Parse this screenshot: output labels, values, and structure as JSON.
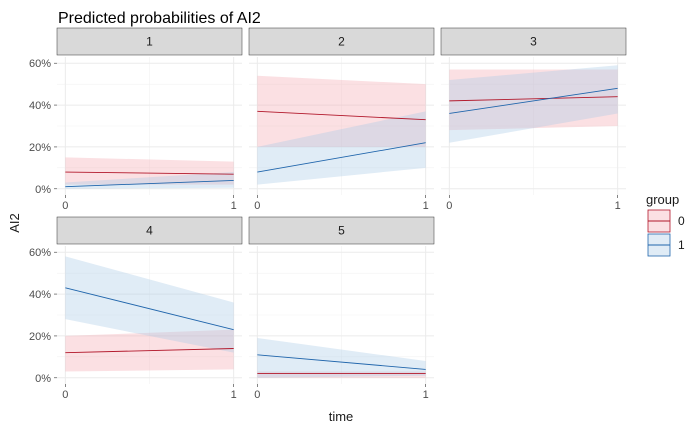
{
  "chart_data": {
    "type": "line",
    "title": "Predicted probabilities of AI2",
    "xlabel": "time",
    "ylabel": "AI2",
    "xlim": [
      0,
      1
    ],
    "ylim": [
      0,
      0.6
    ],
    "x_ticks": [
      "0",
      "1"
    ],
    "y_ticks": [
      "0%",
      "20%",
      "40%",
      "60%"
    ],
    "legend": {
      "title": "group",
      "position": "right",
      "entries": [
        {
          "label": "0",
          "line_color": "#b2182b",
          "fill_color": "#f4a7ae"
        },
        {
          "label": "1",
          "line_color": "#2166ac",
          "fill_color": "#a6c8e6"
        }
      ]
    },
    "facets": [
      {
        "label": "1",
        "series": [
          {
            "group": "0",
            "x": [
              0,
              1
            ],
            "y": [
              0.08,
              0.07
            ],
            "lower": [
              0.02,
              0.02
            ],
            "upper": [
              0.15,
              0.13
            ]
          },
          {
            "group": "1",
            "x": [
              0,
              1
            ],
            "y": [
              0.01,
              0.04
            ],
            "lower": [
              0.0,
              0.005
            ],
            "upper": [
              0.03,
              0.08
            ]
          }
        ]
      },
      {
        "label": "2",
        "series": [
          {
            "group": "0",
            "x": [
              0,
              1
            ],
            "y": [
              0.37,
              0.33
            ],
            "lower": [
              0.2,
              0.2
            ],
            "upper": [
              0.54,
              0.5
            ]
          },
          {
            "group": "1",
            "x": [
              0,
              1
            ],
            "y": [
              0.08,
              0.22
            ],
            "lower": [
              0.02,
              0.1
            ],
            "upper": [
              0.2,
              0.37
            ]
          }
        ]
      },
      {
        "label": "3",
        "series": [
          {
            "group": "0",
            "x": [
              0,
              1
            ],
            "y": [
              0.42,
              0.44
            ],
            "lower": [
              0.28,
              0.3
            ],
            "upper": [
              0.57,
              0.57
            ]
          },
          {
            "group": "1",
            "x": [
              0,
              1
            ],
            "y": [
              0.36,
              0.48
            ],
            "lower": [
              0.22,
              0.36
            ],
            "upper": [
              0.52,
              0.59
            ]
          }
        ]
      },
      {
        "label": "4",
        "series": [
          {
            "group": "0",
            "x": [
              0,
              1
            ],
            "y": [
              0.12,
              0.14
            ],
            "lower": [
              0.03,
              0.04
            ],
            "upper": [
              0.2,
              0.23
            ]
          },
          {
            "group": "1",
            "x": [
              0,
              1
            ],
            "y": [
              0.43,
              0.23
            ],
            "lower": [
              0.28,
              0.12
            ],
            "upper": [
              0.58,
              0.36
            ]
          }
        ]
      },
      {
        "label": "5",
        "series": [
          {
            "group": "0",
            "x": [
              0,
              1
            ],
            "y": [
              0.02,
              0.02
            ],
            "lower": [
              0.0,
              0.0
            ],
            "upper": [
              0.03,
              0.03
            ]
          },
          {
            "group": "1",
            "x": [
              0,
              1
            ],
            "y": [
              0.11,
              0.04
            ],
            "lower": [
              0.0,
              0.01
            ],
            "upper": [
              0.19,
              0.08
            ]
          }
        ]
      }
    ]
  }
}
